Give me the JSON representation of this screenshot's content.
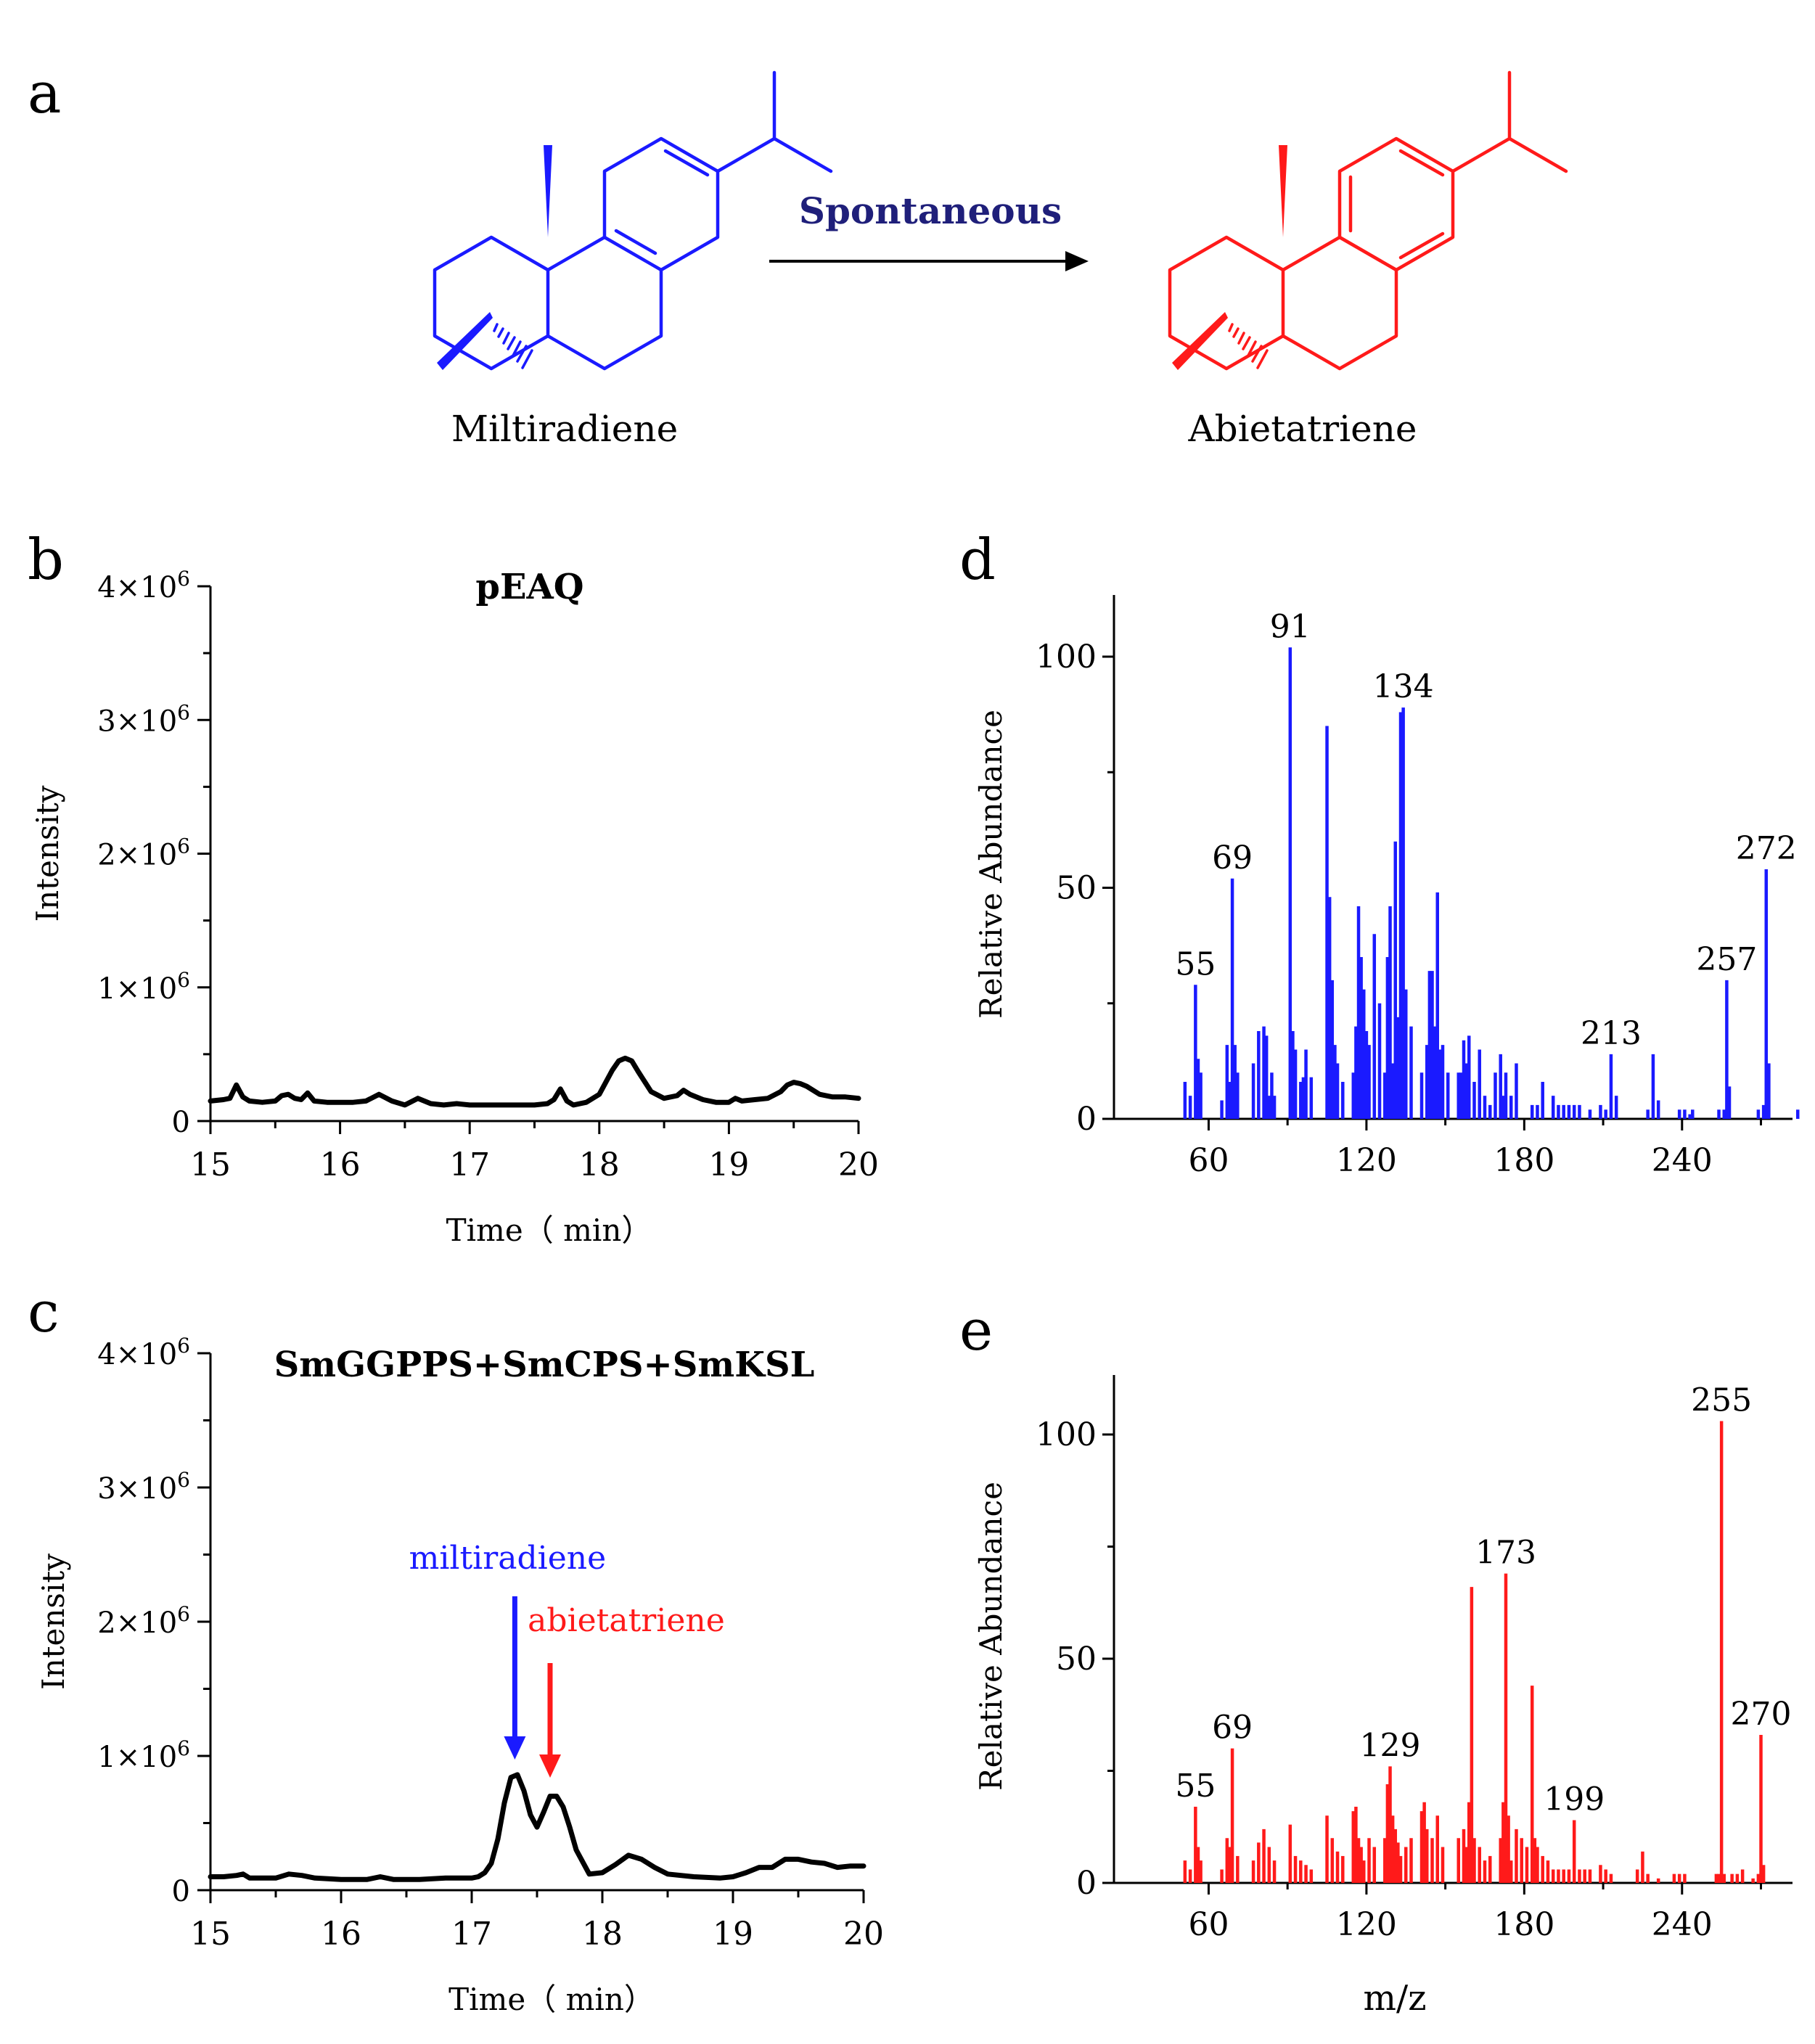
{
  "panel_a": {
    "letter": "a",
    "left_label": "Miltiradiene",
    "right_label": "Abietatriene",
    "arrow_label": "Spontaneous",
    "colors": {
      "left": "#1a1aff",
      "right": "#ff1a1a",
      "arrow_label": "#1f1f7a"
    }
  },
  "chart_data": [
    {
      "panel": "b",
      "type": "line",
      "title": "pEAQ",
      "xlabel": "Time（ min）",
      "ylabel": "Intensity",
      "xlim": [
        15,
        20
      ],
      "ylim": [
        0,
        4000000
      ],
      "xticks": [
        "15",
        "16",
        "17",
        "18",
        "19",
        "20"
      ],
      "yticks": [
        {
          "base": "0",
          "exp": ""
        },
        {
          "base": "1×10",
          "exp": "6"
        },
        {
          "base": "2×10",
          "exp": "6"
        },
        {
          "base": "3×10",
          "exp": "6"
        },
        {
          "base": "4×10",
          "exp": "6"
        }
      ],
      "series": [
        {
          "name": "pEAQ",
          "color": "#000000",
          "x": [
            15.0,
            15.1,
            15.15,
            15.2,
            15.25,
            15.3,
            15.4,
            15.5,
            15.55,
            15.6,
            15.65,
            15.7,
            15.75,
            15.8,
            15.9,
            16.0,
            16.1,
            16.2,
            16.3,
            16.4,
            16.5,
            16.6,
            16.7,
            16.8,
            16.9,
            17.0,
            17.1,
            17.2,
            17.3,
            17.4,
            17.5,
            17.6,
            17.65,
            17.7,
            17.75,
            17.8,
            17.9,
            18.0,
            18.1,
            18.15,
            18.2,
            18.25,
            18.3,
            18.4,
            18.5,
            18.6,
            18.65,
            18.7,
            18.8,
            18.9,
            19.0,
            19.05,
            19.1,
            19.2,
            19.3,
            19.4,
            19.45,
            19.5,
            19.55,
            19.6,
            19.7,
            19.8,
            19.9,
            20.0
          ],
          "y": [
            150000,
            160000,
            170000,
            270000,
            180000,
            150000,
            140000,
            150000,
            190000,
            200000,
            170000,
            160000,
            210000,
            150000,
            140000,
            140000,
            140000,
            150000,
            200000,
            150000,
            120000,
            170000,
            130000,
            120000,
            130000,
            120000,
            120000,
            120000,
            120000,
            120000,
            120000,
            130000,
            160000,
            240000,
            150000,
            120000,
            140000,
            200000,
            380000,
            450000,
            470000,
            450000,
            370000,
            220000,
            170000,
            190000,
            230000,
            200000,
            160000,
            140000,
            140000,
            170000,
            150000,
            160000,
            170000,
            220000,
            270000,
            290000,
            280000,
            260000,
            200000,
            180000,
            180000,
            170000
          ]
        }
      ]
    },
    {
      "panel": "c",
      "type": "line",
      "title": "SmGGPPS+SmCPS+SmKSL",
      "xlabel": "Time（ min）",
      "ylabel": "Intensity",
      "xlim": [
        15,
        20
      ],
      "ylim": [
        0,
        4000000
      ],
      "xticks": [
        "15",
        "16",
        "17",
        "18",
        "19",
        "20"
      ],
      "yticks": [
        {
          "base": "0",
          "exp": ""
        },
        {
          "base": "1×10",
          "exp": "6"
        },
        {
          "base": "2×10",
          "exp": "6"
        },
        {
          "base": "3×10",
          "exp": "6"
        },
        {
          "base": "4×10",
          "exp": "6"
        }
      ],
      "series": [
        {
          "name": "SmGGPPS+SmCPS+SmKSL",
          "color": "#000000",
          "x": [
            15.0,
            15.1,
            15.2,
            15.25,
            15.3,
            15.4,
            15.5,
            15.6,
            15.7,
            15.8,
            16.0,
            16.2,
            16.3,
            16.4,
            16.6,
            16.8,
            17.0,
            17.05,
            17.1,
            17.15,
            17.2,
            17.25,
            17.3,
            17.35,
            17.4,
            17.45,
            17.5,
            17.55,
            17.6,
            17.65,
            17.7,
            17.75,
            17.8,
            17.9,
            18.0,
            18.1,
            18.2,
            18.3,
            18.4,
            18.5,
            18.7,
            18.9,
            19.0,
            19.1,
            19.2,
            19.3,
            19.4,
            19.5,
            19.6,
            19.7,
            19.8,
            19.9,
            20.0
          ],
          "y": [
            100000,
            100000,
            110000,
            120000,
            90000,
            90000,
            90000,
            120000,
            110000,
            90000,
            80000,
            80000,
            100000,
            80000,
            80000,
            90000,
            90000,
            100000,
            130000,
            200000,
            380000,
            650000,
            840000,
            860000,
            740000,
            560000,
            470000,
            580000,
            700000,
            700000,
            620000,
            470000,
            300000,
            120000,
            130000,
            190000,
            260000,
            230000,
            170000,
            120000,
            100000,
            90000,
            100000,
            130000,
            170000,
            170000,
            230000,
            230000,
            210000,
            200000,
            170000,
            180000,
            180000
          ]
        }
      ],
      "annotations": [
        {
          "text": "miltiradiene",
          "x": 17.33,
          "color": "#1a1aff"
        },
        {
          "text": "abietatriene",
          "x": 17.6,
          "color": "#ff1a1a"
        }
      ]
    },
    {
      "panel": "d",
      "type": "bar",
      "xlabel": "",
      "ylabel": "Relative Abundance",
      "xlim": [
        24,
        282
      ],
      "ylim": [
        0,
        110
      ],
      "xticks": [
        "60",
        "120",
        "180",
        "240"
      ],
      "yticks": [
        "0",
        "50",
        "100"
      ],
      "color": "#1a1aff",
      "mz": [
        51,
        53,
        55,
        56,
        57,
        65,
        67,
        68,
        69,
        70,
        71,
        77,
        79,
        81,
        82,
        83,
        84,
        85,
        91,
        92,
        93,
        95,
        96,
        97,
        99,
        105,
        106,
        107,
        108,
        109,
        111,
        115,
        116,
        117,
        118,
        119,
        120,
        121,
        123,
        125,
        127,
        128,
        129,
        130,
        131,
        132,
        133,
        134,
        135,
        137,
        141,
        143,
        144,
        145,
        146,
        147,
        148,
        149,
        151,
        155,
        156,
        157,
        158,
        159,
        161,
        163,
        165,
        167,
        169,
        171,
        172,
        173,
        175,
        177,
        183,
        185,
        187,
        191,
        193,
        195,
        197,
        199,
        201,
        205,
        209,
        211,
        213,
        215,
        227,
        229,
        231,
        239,
        241,
        243,
        244,
        254,
        256,
        257,
        258,
        269,
        271,
        272,
        273,
        284
      ],
      "abundance": [
        8,
        5,
        29,
        13,
        10,
        4,
        16,
        8,
        52,
        16,
        10,
        12,
        19,
        20,
        18,
        5,
        10,
        5,
        102,
        19,
        15,
        8,
        9,
        15,
        9,
        85,
        48,
        30,
        16,
        12,
        8,
        10,
        20,
        46,
        35,
        28,
        19,
        16,
        40,
        25,
        10,
        35,
        46,
        12,
        60,
        22,
        88,
        89,
        28,
        20,
        10,
        16,
        32,
        32,
        20,
        49,
        15,
        16,
        10,
        10,
        10,
        17,
        12,
        18,
        8,
        15,
        5,
        3,
        10,
        14,
        5,
        10,
        5,
        12,
        3,
        3,
        8,
        5,
        3,
        3,
        3,
        3,
        3,
        2,
        3,
        2,
        14,
        5,
        2,
        14,
        4,
        2,
        2,
        1,
        2,
        2,
        2,
        30,
        7,
        2,
        3,
        54,
        12,
        2
      ],
      "peak_labels": [
        {
          "mz": 55,
          "label": "55"
        },
        {
          "mz": 69,
          "label": "69"
        },
        {
          "mz": 91,
          "label": "91"
        },
        {
          "mz": 134,
          "label": "134"
        },
        {
          "mz": 213,
          "label": "213"
        },
        {
          "mz": 257,
          "label": "257"
        },
        {
          "mz": 272,
          "label": "272"
        }
      ]
    },
    {
      "panel": "e",
      "type": "bar",
      "xlabel": "m/z",
      "ylabel": "Relative Abundance",
      "xlim": [
        24,
        282
      ],
      "ylim": [
        0,
        110
      ],
      "xticks": [
        "60",
        "120",
        "180",
        "240"
      ],
      "yticks": [
        "0",
        "50",
        "100"
      ],
      "color": "#ff1a1a",
      "mz": [
        51,
        53,
        55,
        56,
        57,
        65,
        67,
        68,
        69,
        71,
        77,
        79,
        81,
        83,
        85,
        91,
        93,
        95,
        97,
        99,
        105,
        107,
        109,
        111,
        115,
        116,
        117,
        118,
        119,
        121,
        123,
        127,
        128,
        129,
        130,
        131,
        132,
        133,
        135,
        137,
        141,
        142,
        143,
        145,
        147,
        149,
        155,
        157,
        158,
        159,
        160,
        161,
        163,
        165,
        167,
        171,
        172,
        173,
        174,
        175,
        177,
        179,
        181,
        183,
        184,
        185,
        187,
        189,
        191,
        193,
        195,
        197,
        199,
        201,
        203,
        205,
        209,
        211,
        213,
        223,
        225,
        227,
        231,
        237,
        239,
        241,
        253,
        254,
        255,
        256,
        259,
        261,
        263,
        267,
        269,
        270,
        271
      ],
      "abundance": [
        5,
        3,
        17,
        8,
        5,
        3,
        10,
        8,
        30,
        6,
        5,
        9,
        12,
        8,
        5,
        13,
        6,
        5,
        4,
        3,
        15,
        10,
        7,
        6,
        16,
        17,
        10,
        8,
        5,
        10,
        8,
        10,
        22,
        26,
        15,
        12,
        9,
        6,
        8,
        10,
        16,
        18,
        12,
        10,
        15,
        8,
        10,
        12,
        8,
        18,
        66,
        10,
        8,
        5,
        6,
        10,
        18,
        69,
        15,
        5,
        12,
        10,
        8,
        44,
        10,
        8,
        6,
        5,
        3,
        3,
        3,
        3,
        14,
        3,
        3,
        3,
        4,
        3,
        2,
        3,
        7,
        2,
        1,
        2,
        2,
        2,
        2,
        2,
        103,
        2,
        2,
        2,
        3,
        1,
        2,
        33,
        4
      ],
      "peak_labels": [
        {
          "mz": 55,
          "label": "55"
        },
        {
          "mz": 69,
          "label": "69"
        },
        {
          "mz": 129,
          "label": "129"
        },
        {
          "mz": 173,
          "label": "173"
        },
        {
          "mz": 199,
          "label": "199"
        },
        {
          "mz": 255,
          "label": "255"
        },
        {
          "mz": 270,
          "label": "270"
        }
      ]
    }
  ]
}
